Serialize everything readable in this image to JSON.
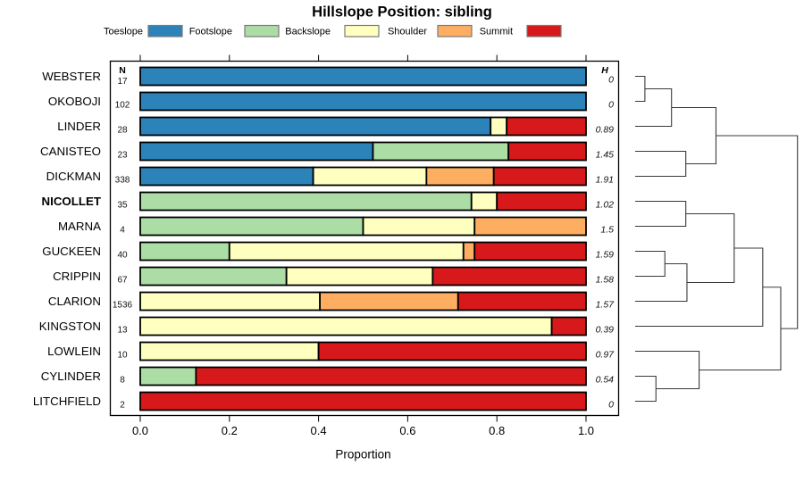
{
  "title": "Hillslope Position: sibling",
  "columns": {
    "n_header": "N",
    "h_header": "H"
  },
  "axis": {
    "xlabel": "Proportion",
    "tick_labels": [
      "0.0",
      "0.2",
      "0.4",
      "0.6",
      "0.8",
      "1.0"
    ],
    "tick_values": [
      0,
      0.2,
      0.4,
      0.6,
      0.8,
      1.0
    ],
    "xlim": [
      0,
      1
    ]
  },
  "legend": {
    "items": [
      {
        "label": "Toeslope",
        "color": "#2B83BA"
      },
      {
        "label": "Footslope",
        "color": "#ABDDA4"
      },
      {
        "label": "Backslope",
        "color": "#FFFFBF"
      },
      {
        "label": "Shoulder",
        "color": "#FDAE61"
      },
      {
        "label": "Summit",
        "color": "#D7191C"
      }
    ]
  },
  "chart_data": {
    "type": "bar",
    "variant": "horizontal-stacked-proportion",
    "title": "Hillslope Position: sibling",
    "xlabel": "Proportion",
    "xlim": [
      0,
      1
    ],
    "grid": false,
    "legend_position": "top",
    "categories": [
      "Toeslope",
      "Footslope",
      "Backslope",
      "Shoulder",
      "Summit"
    ],
    "colors": {
      "Toeslope": "#2B83BA",
      "Footslope": "#ABDDA4",
      "Backslope": "#FFFFBF",
      "Shoulder": "#FDAE61",
      "Summit": "#D7191C"
    },
    "rows": [
      {
        "name": "WEBSTER",
        "n": 17,
        "h": "0",
        "bold": false,
        "segments": [
          [
            "Toeslope",
            1.0
          ]
        ]
      },
      {
        "name": "OKOBOJI",
        "n": 102,
        "h": "0",
        "bold": false,
        "segments": [
          [
            "Toeslope",
            1.0
          ]
        ]
      },
      {
        "name": "LINDER",
        "n": 28,
        "h": "0.89",
        "bold": false,
        "segments": [
          [
            "Toeslope",
            0.786
          ],
          [
            "Backslope",
            0.036
          ],
          [
            "Summit",
            0.178
          ]
        ]
      },
      {
        "name": "CANISTEO",
        "n": 23,
        "h": "1.45",
        "bold": false,
        "segments": [
          [
            "Toeslope",
            0.522
          ],
          [
            "Footslope",
            0.304
          ],
          [
            "Summit",
            0.174
          ]
        ]
      },
      {
        "name": "DICKMAN",
        "n": 338,
        "h": "1.91",
        "bold": false,
        "segments": [
          [
            "Toeslope",
            0.388
          ],
          [
            "Backslope",
            0.254
          ],
          [
            "Shoulder",
            0.151
          ],
          [
            "Summit",
            0.207
          ]
        ]
      },
      {
        "name": "NICOLLET",
        "n": 35,
        "h": "1.02",
        "bold": true,
        "segments": [
          [
            "Footslope",
            0.743
          ],
          [
            "Backslope",
            0.057
          ],
          [
            "Summit",
            0.2
          ]
        ]
      },
      {
        "name": "MARNA",
        "n": 4,
        "h": "1.5",
        "bold": false,
        "segments": [
          [
            "Footslope",
            0.5
          ],
          [
            "Backslope",
            0.25
          ],
          [
            "Shoulder",
            0.25
          ]
        ]
      },
      {
        "name": "GUCKEEN",
        "n": 40,
        "h": "1.59",
        "bold": false,
        "segments": [
          [
            "Footslope",
            0.2
          ],
          [
            "Backslope",
            0.525
          ],
          [
            "Shoulder",
            0.025
          ],
          [
            "Summit",
            0.25
          ]
        ]
      },
      {
        "name": "CRIPPIN",
        "n": 67,
        "h": "1.58",
        "bold": false,
        "segments": [
          [
            "Footslope",
            0.328
          ],
          [
            "Backslope",
            0.328
          ],
          [
            "Summit",
            0.344
          ]
        ]
      },
      {
        "name": "CLARION",
        "n": 1536,
        "h": "1.57",
        "bold": false,
        "segments": [
          [
            "Backslope",
            0.403
          ],
          [
            "Shoulder",
            0.31
          ],
          [
            "Summit",
            0.287
          ]
        ]
      },
      {
        "name": "KINGSTON",
        "n": 13,
        "h": "0.39",
        "bold": false,
        "segments": [
          [
            "Backslope",
            0.923
          ],
          [
            "Summit",
            0.077
          ]
        ]
      },
      {
        "name": "LOWLEIN",
        "n": 10,
        "h": "0.97",
        "bold": false,
        "segments": [
          [
            "Backslope",
            0.4
          ],
          [
            "Summit",
            0.6
          ]
        ]
      },
      {
        "name": "CYLINDER",
        "n": 8,
        "h": "0.54",
        "bold": false,
        "segments": [
          [
            "Footslope",
            0.125
          ],
          [
            "Summit",
            0.875
          ]
        ]
      },
      {
        "name": "LITCHFIELD",
        "n": 2,
        "h": "0",
        "bold": false,
        "segments": [
          [
            "Summit",
            1.0
          ]
        ]
      }
    ],
    "dendrogram": {
      "leaf_order": [
        "WEBSTER",
        "OKOBOJI",
        "LINDER",
        "CANISTEO",
        "DICKMAN",
        "NICOLLET",
        "MARNA",
        "GUCKEEN",
        "CRIPPIN",
        "CLARION",
        "KINGSTON",
        "LOWLEIN",
        "CYLINDER",
        "LITCHFIELD"
      ],
      "merges": [
        [
          0,
          1,
          0.06
        ],
        [
          14,
          2,
          0.224
        ],
        [
          3,
          4,
          0.312
        ],
        [
          15,
          16,
          0.498
        ],
        [
          5,
          6,
          0.312
        ],
        [
          7,
          8,
          0.183
        ],
        [
          19,
          9,
          0.319
        ],
        [
          18,
          20,
          0.61
        ],
        [
          21,
          10,
          0.786
        ],
        [
          12,
          13,
          0.128
        ],
        [
          11,
          23,
          0.394
        ],
        [
          22,
          24,
          0.897
        ],
        [
          17,
          25,
          1.0
        ]
      ]
    }
  }
}
